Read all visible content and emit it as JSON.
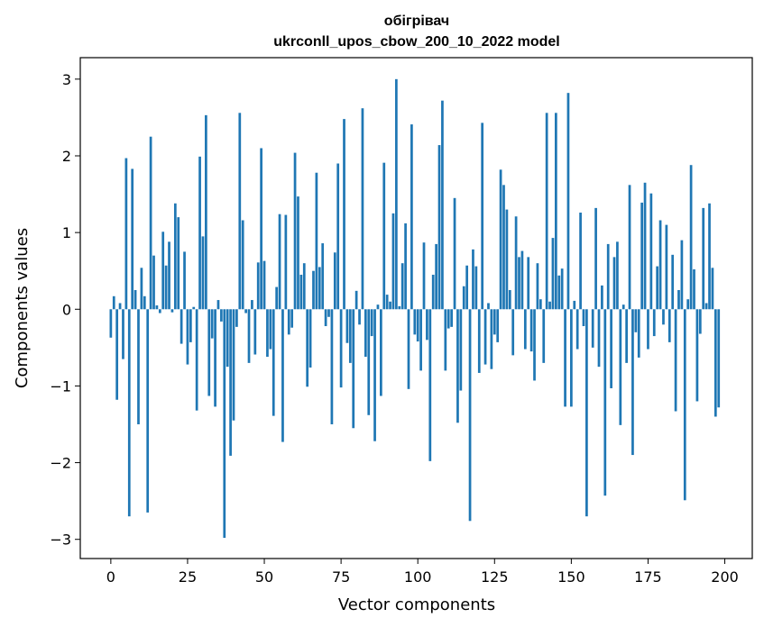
{
  "chart_data": {
    "type": "bar",
    "title_line1": "обігрівач",
    "title_line2": "ukrconll_upos_cbow_200_10_2022 model",
    "xlabel": "Vector components",
    "ylabel": "Components values",
    "xlim": [
      -9.95,
      208.95
    ],
    "ylim": [
      -3.25,
      3.28
    ],
    "xticks": [
      0,
      25,
      50,
      75,
      100,
      125,
      150,
      175,
      200
    ],
    "yticks": [
      -3,
      -2,
      -1,
      0,
      1,
      2,
      3
    ],
    "ytick_labels": [
      "−3",
      "−2",
      "−1",
      "0",
      "1",
      "2",
      "3"
    ],
    "bar_color": "#1f77b4",
    "bar_width": 0.8,
    "values": [
      -0.37,
      0.17,
      -1.18,
      0.08,
      -0.65,
      1.97,
      -2.7,
      1.83,
      0.25,
      -1.5,
      0.54,
      0.17,
      -2.65,
      2.25,
      0.7,
      0.05,
      -0.05,
      1.01,
      0.57,
      0.88,
      -0.04,
      1.38,
      1.2,
      -0.45,
      0.75,
      -0.72,
      -0.43,
      0.03,
      -1.32,
      1.99,
      0.95,
      2.53,
      -1.13,
      -0.38,
      -1.27,
      0.12,
      -0.16,
      -2.98,
      -0.75,
      -1.91,
      -1.45,
      -0.23,
      2.56,
      1.16,
      -0.05,
      -0.7,
      0.12,
      -0.59,
      0.61,
      2.1,
      0.63,
      -0.62,
      -0.52,
      -1.39,
      0.29,
      1.24,
      -1.73,
      1.23,
      -0.33,
      -0.24,
      2.04,
      1.47,
      0.45,
      0.6,
      -1.01,
      -0.76,
      0.5,
      1.78,
      0.55,
      0.86,
      -0.22,
      -0.1,
      -1.5,
      0.74,
      1.9,
      -1.02,
      2.48,
      -0.44,
      -0.7,
      -1.55,
      0.24,
      -0.2,
      2.62,
      -0.62,
      -1.38,
      -0.35,
      -1.72,
      0.06,
      -1.13,
      1.91,
      0.19,
      0.1,
      1.25,
      3.0,
      0.04,
      0.6,
      1.12,
      -1.04,
      2.41,
      -0.33,
      -0.42,
      -0.8,
      0.87,
      -0.4,
      -1.98,
      0.45,
      0.85,
      2.14,
      2.72,
      -0.8,
      -0.25,
      -0.23,
      1.45,
      -1.48,
      -1.06,
      0.3,
      0.57,
      -2.76,
      0.78,
      0.56,
      -0.83,
      2.43,
      -0.72,
      0.08,
      -0.78,
      -0.33,
      -0.43,
      1.82,
      1.62,
      1.3,
      0.25,
      -0.6,
      1.21,
      0.68,
      0.76,
      -0.52,
      0.68,
      -0.55,
      -0.93,
      0.6,
      0.13,
      -0.7,
      2.56,
      0.1,
      0.93,
      2.56,
      0.44,
      0.53,
      -1.27,
      2.82,
      -1.27,
      0.11,
      -0.52,
      1.26,
      -0.22,
      -2.7,
      0.0,
      -0.5,
      1.32,
      -0.75,
      0.31,
      -2.43,
      0.85,
      -1.03,
      0.68,
      0.88,
      -1.51,
      0.06,
      -0.7,
      1.62,
      -1.9,
      -0.3,
      -0.63,
      1.39,
      1.65,
      -0.52,
      1.51,
      -0.35,
      0.56,
      1.16,
      -0.2,
      1.1,
      -0.43,
      0.71,
      -1.33,
      0.25,
      0.9,
      -2.49,
      0.13,
      1.88,
      0.52,
      -1.2,
      -0.32,
      1.32,
      0.08,
      1.38,
      0.54,
      -1.4,
      -1.28
    ]
  }
}
